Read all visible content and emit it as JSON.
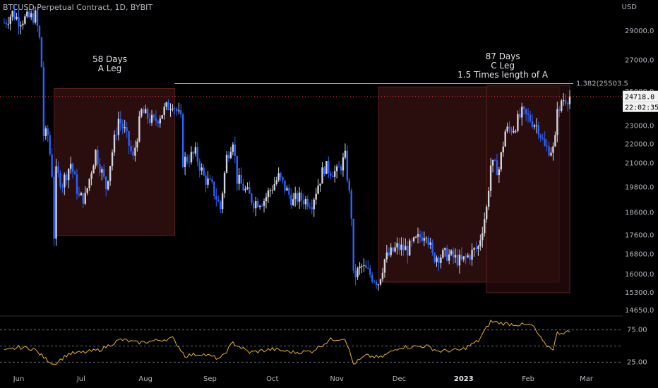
{
  "header": {
    "title": "BTCUSD Perpetual Contract, 1D, BYBIT",
    "currency": "USD"
  },
  "price_tag": {
    "price": "24718.0",
    "countdown": "22:02:35"
  },
  "chart_data": {
    "type": "candlestick",
    "title": "BTCUSD Perpetual Contract, 1D, BYBIT",
    "price_axis": {
      "unit": "USD",
      "ticks": [
        29000,
        27000,
        25000,
        23000,
        22000,
        21000,
        19800,
        18600,
        17600,
        16800,
        16000,
        15300,
        14650
      ],
      "tick_labels": [
        "29000.0",
        "27000.0",
        "25000.0",
        "23000.0",
        "22000.0",
        "21000.0",
        "19800.0",
        "18600.0",
        "17600.0",
        "16800.0",
        "16000.0",
        "15300.0",
        "14650.0"
      ],
      "scale": "log"
    },
    "time_axis": {
      "labels": [
        "Jun",
        "Jul",
        "Aug",
        "Sep",
        "Oct",
        "Nov",
        "Dec",
        "2023",
        "Feb",
        "Mar"
      ],
      "bold_labels": [
        "2023"
      ]
    },
    "candles_close_series": [
      {
        "date": "2022-05-25",
        "close": 29600
      },
      {
        "date": "2022-05-29",
        "close": 30300
      },
      {
        "date": "2022-06-01",
        "close": 29800
      },
      {
        "date": "2022-06-05",
        "close": 29900
      },
      {
        "date": "2022-06-09",
        "close": 30100
      },
      {
        "date": "2022-06-11",
        "close": 28400
      },
      {
        "date": "2022-06-12",
        "close": 26600
      },
      {
        "date": "2022-06-13",
        "close": 22500
      },
      {
        "date": "2022-06-15",
        "close": 22500
      },
      {
        "date": "2022-06-17",
        "close": 20500
      },
      {
        "date": "2022-06-18",
        "close": 17600
      },
      {
        "date": "2022-06-19",
        "close": 20500
      },
      {
        "date": "2022-06-22",
        "close": 20000
      },
      {
        "date": "2022-06-26",
        "close": 21000
      },
      {
        "date": "2022-06-30",
        "close": 19300
      },
      {
        "date": "2022-07-03",
        "close": 19300
      },
      {
        "date": "2022-07-08",
        "close": 21600
      },
      {
        "date": "2022-07-13",
        "close": 19800
      },
      {
        "date": "2022-07-19",
        "close": 23400
      },
      {
        "date": "2022-07-22",
        "close": 22700
      },
      {
        "date": "2022-07-26",
        "close": 21200
      },
      {
        "date": "2022-07-30",
        "close": 23800
      },
      {
        "date": "2022-08-05",
        "close": 23200
      },
      {
        "date": "2022-08-10",
        "close": 23900
      },
      {
        "date": "2022-08-14",
        "close": 24400
      },
      {
        "date": "2022-08-18",
        "close": 23300
      },
      {
        "date": "2022-08-19",
        "close": 21100
      },
      {
        "date": "2022-08-25",
        "close": 21500
      },
      {
        "date": "2022-08-29",
        "close": 20300
      },
      {
        "date": "2022-09-02",
        "close": 19800
      },
      {
        "date": "2022-09-06",
        "close": 18800
      },
      {
        "date": "2022-09-09",
        "close": 21300
      },
      {
        "date": "2022-09-12",
        "close": 22300
      },
      {
        "date": "2022-09-14",
        "close": 20200
      },
      {
        "date": "2022-09-19",
        "close": 19500
      },
      {
        "date": "2022-09-22",
        "close": 19100
      },
      {
        "date": "2022-09-27",
        "close": 19200
      },
      {
        "date": "2022-10-04",
        "close": 20300
      },
      {
        "date": "2022-10-11",
        "close": 19100
      },
      {
        "date": "2022-10-13",
        "close": 19300
      },
      {
        "date": "2022-10-20",
        "close": 19100
      },
      {
        "date": "2022-10-26",
        "close": 20800
      },
      {
        "date": "2022-11-01",
        "close": 20500
      },
      {
        "date": "2022-11-05",
        "close": 21300
      },
      {
        "date": "2022-11-08",
        "close": 18500
      },
      {
        "date": "2022-11-09",
        "close": 15900
      },
      {
        "date": "2022-11-13",
        "close": 16300
      },
      {
        "date": "2022-11-21",
        "close": 15700
      },
      {
        "date": "2022-11-24",
        "close": 16600
      },
      {
        "date": "2022-11-30",
        "close": 17100
      },
      {
        "date": "2022-12-05",
        "close": 17000
      },
      {
        "date": "2022-12-14",
        "close": 17800
      },
      {
        "date": "2022-12-17",
        "close": 16700
      },
      {
        "date": "2022-12-24",
        "close": 16800
      },
      {
        "date": "2022-12-31",
        "close": 16500
      },
      {
        "date": "2023-01-04",
        "close": 16800
      },
      {
        "date": "2023-01-08",
        "close": 17100
      },
      {
        "date": "2023-01-12",
        "close": 18800
      },
      {
        "date": "2023-01-14",
        "close": 20900
      },
      {
        "date": "2023-01-18",
        "close": 20700
      },
      {
        "date": "2023-01-21",
        "close": 22700
      },
      {
        "date": "2023-01-25",
        "close": 22900
      },
      {
        "date": "2023-01-29",
        "close": 23700
      },
      {
        "date": "2023-02-02",
        "close": 23400
      },
      {
        "date": "2023-02-06",
        "close": 22900
      },
      {
        "date": "2023-02-09",
        "close": 21800
      },
      {
        "date": "2023-02-13",
        "close": 21700
      },
      {
        "date": "2023-02-14",
        "close": 22200
      },
      {
        "date": "2023-02-15",
        "close": 24300
      },
      {
        "date": "2023-02-16",
        "close": 23600
      },
      {
        "date": "2023-02-17",
        "close": 24500
      },
      {
        "date": "2023-02-21",
        "close": 24718
      }
    ],
    "boxes": [
      {
        "name": "A Leg",
        "start": "2022-06-18",
        "end": "2022-08-15",
        "low": 17600,
        "high": 25200
      },
      {
        "name": "C Leg",
        "start": "2022-11-21",
        "end": "2023-02-16",
        "low": 15700,
        "high": 25300
      }
    ],
    "second_box": {
      "start": "2023-01-12",
      "end": "2023-02-21",
      "low": 15300,
      "high": 25400
    },
    "annotations": [
      {
        "lines": [
          "58 Days",
          "A Leg"
        ]
      },
      {
        "lines": [
          "87 Days",
          "C Leg",
          "1.5 Times length of A"
        ]
      }
    ],
    "level_line": {
      "label": "1.382(25503.5",
      "value": 25503.5,
      "start": "2022-08-15"
    },
    "rsi": {
      "upper_label": "75.00",
      "lower_label": "25.00",
      "upper": 75,
      "mid": 50,
      "lower": 25,
      "line_color": "#e6b422",
      "values": [
        {
          "date": "2022-05-25",
          "v": 42
        },
        {
          "date": "2022-06-01",
          "v": 48
        },
        {
          "date": "2022-06-08",
          "v": 46
        },
        {
          "date": "2022-06-14",
          "v": 30
        },
        {
          "date": "2022-06-18",
          "v": 22
        },
        {
          "date": "2022-06-25",
          "v": 38
        },
        {
          "date": "2022-07-02",
          "v": 40
        },
        {
          "date": "2022-07-10",
          "v": 44
        },
        {
          "date": "2022-07-20",
          "v": 60
        },
        {
          "date": "2022-07-28",
          "v": 55
        },
        {
          "date": "2022-08-05",
          "v": 58
        },
        {
          "date": "2022-08-14",
          "v": 62
        },
        {
          "date": "2022-08-20",
          "v": 35
        },
        {
          "date": "2022-08-28",
          "v": 38
        },
        {
          "date": "2022-09-06",
          "v": 30
        },
        {
          "date": "2022-09-12",
          "v": 55
        },
        {
          "date": "2022-09-20",
          "v": 40
        },
        {
          "date": "2022-10-01",
          "v": 45
        },
        {
          "date": "2022-10-12",
          "v": 40
        },
        {
          "date": "2022-10-20",
          "v": 42
        },
        {
          "date": "2022-10-29",
          "v": 60
        },
        {
          "date": "2022-11-05",
          "v": 62
        },
        {
          "date": "2022-11-09",
          "v": 22
        },
        {
          "date": "2022-11-15",
          "v": 35
        },
        {
          "date": "2022-11-22",
          "v": 32
        },
        {
          "date": "2022-12-01",
          "v": 48
        },
        {
          "date": "2022-12-14",
          "v": 50
        },
        {
          "date": "2022-12-20",
          "v": 42
        },
        {
          "date": "2022-12-31",
          "v": 44
        },
        {
          "date": "2023-01-08",
          "v": 58
        },
        {
          "date": "2023-01-14",
          "v": 88
        },
        {
          "date": "2023-01-20",
          "v": 85
        },
        {
          "date": "2023-01-28",
          "v": 83
        },
        {
          "date": "2023-02-03",
          "v": 82
        },
        {
          "date": "2023-02-09",
          "v": 52
        },
        {
          "date": "2023-02-13",
          "v": 46
        },
        {
          "date": "2023-02-15",
          "v": 70
        },
        {
          "date": "2023-02-21",
          "v": 72
        }
      ]
    },
    "colors": {
      "up": "#d1d4dc",
      "down": "#2962ff",
      "box_fill": "#2a0d0d",
      "box_border": "#5b1f1f",
      "level_line": "#b2b5be",
      "price_line": "#f23645",
      "grid": "#2a2e39"
    }
  }
}
